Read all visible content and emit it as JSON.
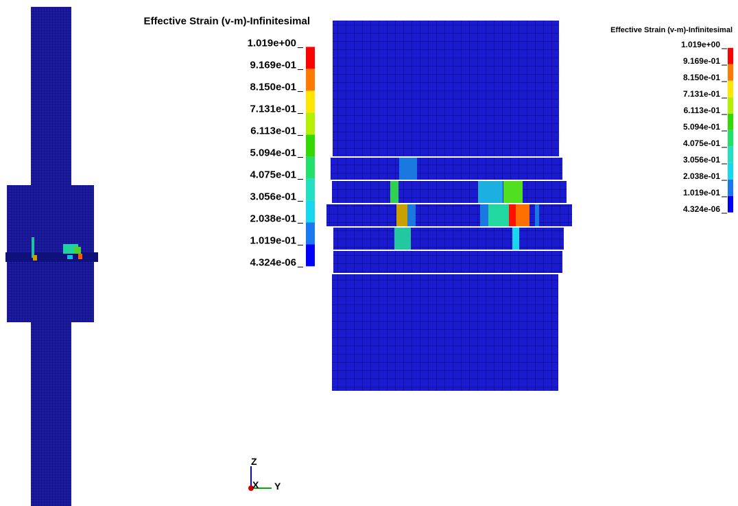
{
  "legends": [
    {
      "title": "Effective Strain (v-m)-Infinitesimal",
      "labels": [
        "1.019e+00",
        "9.169e-01",
        "8.150e-01",
        "7.131e-01",
        "6.113e-01",
        "5.094e-01",
        "4.075e-01",
        "3.056e-01",
        "2.038e-01",
        "1.019e-01",
        "4.324e-06"
      ]
    },
    {
      "title": "Effective Strain (v-m)-Infinitesimal",
      "labels": [
        "1.019e+00",
        "9.169e-01",
        "8.150e-01",
        "7.131e-01",
        "6.113e-01",
        "5.094e-01",
        "4.075e-01",
        "3.056e-01",
        "2.038e-01",
        "1.019e-01",
        "4.324e-06"
      ]
    }
  ],
  "colorbar": [
    "#ff0000",
    "#ff7a00",
    "#ffe600",
    "#b4f000",
    "#33d900",
    "#22e06a",
    "#22e0c0",
    "#18d8f0",
    "#1a78f0",
    "#0000ff"
  ],
  "triad": {
    "z": "Z",
    "x": "X",
    "y": "Y"
  }
}
